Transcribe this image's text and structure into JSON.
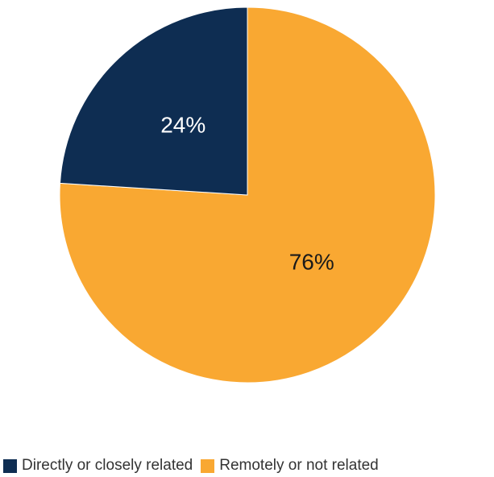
{
  "chart_data": {
    "type": "pie",
    "categories": [
      "Directly or closely related",
      "Remotely or not related"
    ],
    "values": [
      24,
      76
    ],
    "labels": [
      "24%",
      "76%"
    ],
    "colors": [
      "#0e2d52",
      "#f9a832"
    ],
    "label_colors": [
      "#ffffff",
      "#1a1a1a"
    ],
    "legend_position": "bottom",
    "legend": [
      {
        "label": "Directly or closely related",
        "color": "#0e2d52"
      },
      {
        "label": "Remotely or not related",
        "color": "#f9a832"
      }
    ]
  }
}
